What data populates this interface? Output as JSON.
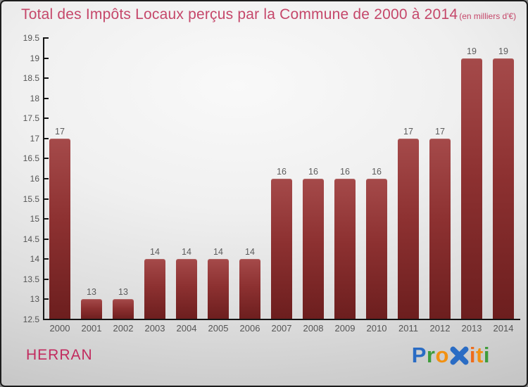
{
  "title": {
    "text": "Total des Impôts Locaux perçus par la Commune de 2000 à 2014",
    "subtitle": "(en milliers d'€)"
  },
  "chart_data": {
    "type": "bar",
    "title": "Total des Impôts Locaux perçus par la Commune de 2000 à 2014 (en milliers d'€)",
    "categories": [
      "2000",
      "2001",
      "2002",
      "2003",
      "2004",
      "2005",
      "2006",
      "2007",
      "2008",
      "2009",
      "2010",
      "2011",
      "2012",
      "2013",
      "2014"
    ],
    "values": [
      17,
      13,
      13,
      14,
      14,
      14,
      14,
      16,
      16,
      16,
      16,
      17,
      17,
      19,
      19
    ],
    "xlabel": "",
    "ylabel": "",
    "ylim": [
      12.5,
      19.5
    ],
    "ytick_step": 0.5,
    "ytick_labels": [
      "12.5",
      "13",
      "13.5",
      "14",
      "14.5",
      "15",
      "15.5",
      "16",
      "16.5",
      "17",
      "17.5",
      "18",
      "18.5",
      "19",
      "19.5"
    ],
    "grid": false,
    "legend": "none",
    "value_labels_shown": true,
    "style": {
      "bar_gradient_top": "#a54a4a",
      "bar_gradient_mid": "#8d3131",
      "bar_gradient_bottom": "#6c1e1e",
      "axis_color": "#151515",
      "tick_label_color": "#555555",
      "value_label_color": "#5c5c5c"
    }
  },
  "footer": {
    "commune": "HERRAN",
    "commune_color": "#c22a5e",
    "logo": {
      "name": "Proxiti",
      "letters": [
        {
          "ch": "P",
          "color": "#2a6cc4"
        },
        {
          "ch": "r",
          "color": "#3f9c3b"
        },
        {
          "ch": "o",
          "color": "#f29111"
        },
        {
          "ch": "x",
          "color": "#2a6cc4",
          "icon": true
        },
        {
          "ch": "i",
          "color": "#ee6c1c"
        },
        {
          "ch": "t",
          "color": "#f29111"
        },
        {
          "ch": "i",
          "color": "#3f9c3b"
        }
      ]
    }
  },
  "colors": {
    "title": "#c5476a",
    "background_center": "#f9f9f9",
    "background_edge": "#c2c2c2",
    "border": "#1d1d1d"
  }
}
